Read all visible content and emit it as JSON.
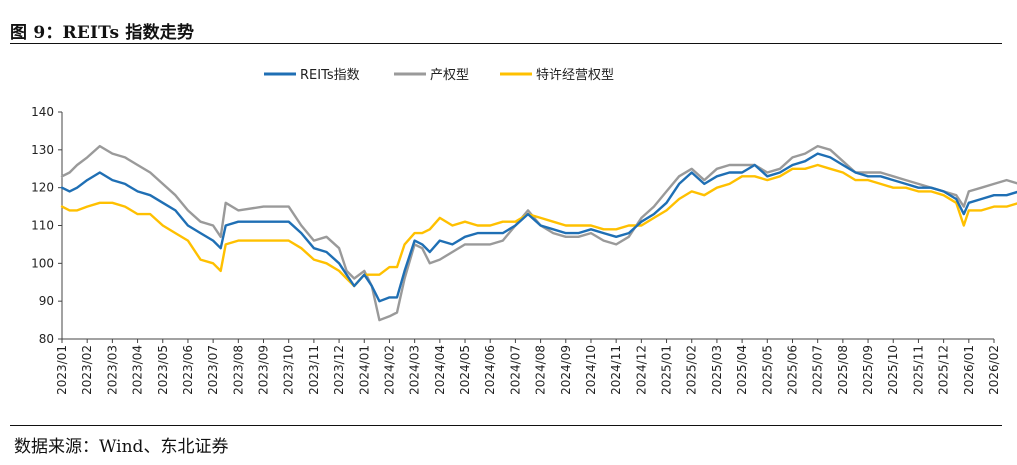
{
  "figure": {
    "title": "图 9：REITs 指数走势",
    "source": "数据来源：Wind、东北证券"
  },
  "chart_data": {
    "type": "line",
    "title": "",
    "xlabel": "",
    "ylabel": "",
    "ylim": [
      80,
      140
    ],
    "yticks": [
      80,
      90,
      100,
      110,
      120,
      130,
      140
    ],
    "grid": false,
    "legend_position": "top-center",
    "x_start": "2023/01",
    "x_end": "2026/02",
    "month_labels": [
      "2023/01",
      "2023/02",
      "2023/03",
      "2023/04",
      "2023/05",
      "2023/06",
      "2023/07",
      "2023/08",
      "2023/09",
      "2023/10",
      "2023/11",
      "2023/12",
      "2024/01",
      "2024/02",
      "2024/03",
      "2024/04",
      "2024/05",
      "2024/06",
      "2024/07",
      "2024/08",
      "2024/09",
      "2024/10",
      "2024/11",
      "2024/12",
      "2025/01",
      "2025/02",
      "2025/03",
      "2025/04",
      "2025/05",
      "2025/06",
      "2025/07",
      "2025/08",
      "2025/09",
      "2025/10",
      "2025/11",
      "2025/12",
      "2026/01",
      "2026/02"
    ],
    "series": [
      {
        "name": "REITs指数",
        "color": "#1f6fb4",
        "points": [
          [
            0,
            120
          ],
          [
            0.3,
            119
          ],
          [
            0.6,
            120
          ],
          [
            1,
            122
          ],
          [
            1.5,
            124
          ],
          [
            2,
            122
          ],
          [
            2.5,
            121
          ],
          [
            3,
            119
          ],
          [
            3.5,
            118
          ],
          [
            4,
            116
          ],
          [
            4.5,
            114
          ],
          [
            5,
            110
          ],
          [
            5.5,
            108
          ],
          [
            6,
            106
          ],
          [
            6.3,
            104
          ],
          [
            6.5,
            110
          ],
          [
            7,
            111
          ],
          [
            8,
            111
          ],
          [
            9,
            111
          ],
          [
            9.5,
            108
          ],
          [
            10,
            104
          ],
          [
            10.5,
            103
          ],
          [
            11,
            100
          ],
          [
            11.3,
            97
          ],
          [
            11.6,
            94
          ],
          [
            12,
            97
          ],
          [
            12.3,
            94
          ],
          [
            12.6,
            90
          ],
          [
            13,
            91
          ],
          [
            13.3,
            91
          ],
          [
            13.6,
            98
          ],
          [
            14,
            106
          ],
          [
            14.3,
            105
          ],
          [
            14.6,
            103
          ],
          [
            15,
            106
          ],
          [
            15.5,
            105
          ],
          [
            16,
            107
          ],
          [
            16.5,
            108
          ],
          [
            17,
            108
          ],
          [
            17.5,
            108
          ],
          [
            18,
            110
          ],
          [
            18.5,
            113
          ],
          [
            19,
            110
          ],
          [
            19.5,
            109
          ],
          [
            20,
            108
          ],
          [
            20.5,
            108
          ],
          [
            21,
            109
          ],
          [
            21.5,
            108
          ],
          [
            22,
            107
          ],
          [
            22.5,
            108
          ],
          [
            23,
            111
          ],
          [
            23.5,
            113
          ],
          [
            24,
            116
          ],
          [
            24.5,
            121
          ],
          [
            25,
            124
          ],
          [
            25.5,
            121
          ],
          [
            26,
            123
          ],
          [
            26.5,
            124
          ],
          [
            27,
            124
          ],
          [
            27.5,
            126
          ],
          [
            28,
            123
          ],
          [
            28.5,
            124
          ],
          [
            29,
            126
          ],
          [
            29.5,
            127
          ],
          [
            30,
            129
          ],
          [
            30.5,
            128
          ],
          [
            31,
            126
          ],
          [
            31.5,
            124
          ],
          [
            32,
            123
          ],
          [
            32.5,
            123
          ],
          [
            33,
            122
          ],
          [
            33.5,
            121
          ],
          [
            34,
            120
          ],
          [
            34.5,
            120
          ],
          [
            35,
            119
          ],
          [
            35.5,
            117
          ],
          [
            35.8,
            113
          ],
          [
            36,
            116
          ],
          [
            36.5,
            117
          ],
          [
            37,
            118
          ],
          [
            37.5,
            118
          ],
          [
            38,
            119
          ]
        ]
      },
      {
        "name": "产权型",
        "color": "#9a9a9a",
        "points": [
          [
            0,
            123
          ],
          [
            0.3,
            124
          ],
          [
            0.6,
            126
          ],
          [
            1,
            128
          ],
          [
            1.5,
            131
          ],
          [
            2,
            129
          ],
          [
            2.5,
            128
          ],
          [
            3,
            126
          ],
          [
            3.5,
            124
          ],
          [
            4,
            121
          ],
          [
            4.5,
            118
          ],
          [
            5,
            114
          ],
          [
            5.5,
            111
          ],
          [
            6,
            110
          ],
          [
            6.3,
            107
          ],
          [
            6.5,
            116
          ],
          [
            7,
            114
          ],
          [
            8,
            115
          ],
          [
            9,
            115
          ],
          [
            9.5,
            110
          ],
          [
            10,
            106
          ],
          [
            10.5,
            107
          ],
          [
            11,
            104
          ],
          [
            11.3,
            98
          ],
          [
            11.6,
            96
          ],
          [
            12,
            98
          ],
          [
            12.3,
            94
          ],
          [
            12.6,
            85
          ],
          [
            13,
            86
          ],
          [
            13.3,
            87
          ],
          [
            13.6,
            96
          ],
          [
            14,
            105
          ],
          [
            14.3,
            104
          ],
          [
            14.6,
            100
          ],
          [
            15,
            101
          ],
          [
            15.5,
            103
          ],
          [
            16,
            105
          ],
          [
            16.5,
            105
          ],
          [
            17,
            105
          ],
          [
            17.5,
            106
          ],
          [
            18,
            110
          ],
          [
            18.5,
            114
          ],
          [
            19,
            110
          ],
          [
            19.5,
            108
          ],
          [
            20,
            107
          ],
          [
            20.5,
            107
          ],
          [
            21,
            108
          ],
          [
            21.5,
            106
          ],
          [
            22,
            105
          ],
          [
            22.5,
            107
          ],
          [
            23,
            112
          ],
          [
            23.5,
            115
          ],
          [
            24,
            119
          ],
          [
            24.5,
            123
          ],
          [
            25,
            125
          ],
          [
            25.5,
            122
          ],
          [
            26,
            125
          ],
          [
            26.5,
            126
          ],
          [
            27,
            126
          ],
          [
            27.5,
            126
          ],
          [
            28,
            124
          ],
          [
            28.5,
            125
          ],
          [
            29,
            128
          ],
          [
            29.5,
            129
          ],
          [
            30,
            131
          ],
          [
            30.5,
            130
          ],
          [
            31,
            127
          ],
          [
            31.5,
            124
          ],
          [
            32,
            124
          ],
          [
            32.5,
            124
          ],
          [
            33,
            123
          ],
          [
            33.5,
            122
          ],
          [
            34,
            121
          ],
          [
            34.5,
            120
          ],
          [
            35,
            119
          ],
          [
            35.5,
            118
          ],
          [
            35.8,
            115
          ],
          [
            36,
            119
          ],
          [
            36.5,
            120
          ],
          [
            37,
            121
          ],
          [
            37.5,
            122
          ],
          [
            38,
            121
          ]
        ]
      },
      {
        "name": "特许经营权型",
        "color": "#ffc000",
        "points": [
          [
            0,
            115
          ],
          [
            0.3,
            114
          ],
          [
            0.6,
            114
          ],
          [
            1,
            115
          ],
          [
            1.5,
            116
          ],
          [
            2,
            116
          ],
          [
            2.5,
            115
          ],
          [
            3,
            113
          ],
          [
            3.5,
            113
          ],
          [
            4,
            110
          ],
          [
            4.5,
            108
          ],
          [
            5,
            106
          ],
          [
            5.5,
            101
          ],
          [
            6,
            100
          ],
          [
            6.3,
            98
          ],
          [
            6.5,
            105
          ],
          [
            7,
            106
          ],
          [
            8,
            106
          ],
          [
            9,
            106
          ],
          [
            9.5,
            104
          ],
          [
            10,
            101
          ],
          [
            10.5,
            100
          ],
          [
            11,
            98
          ],
          [
            11.3,
            96
          ],
          [
            11.6,
            94
          ],
          [
            12,
            97
          ],
          [
            12.3,
            97
          ],
          [
            12.6,
            97
          ],
          [
            13,
            99
          ],
          [
            13.3,
            99
          ],
          [
            13.6,
            105
          ],
          [
            14,
            108
          ],
          [
            14.3,
            108
          ],
          [
            14.6,
            109
          ],
          [
            15,
            112
          ],
          [
            15.5,
            110
          ],
          [
            16,
            111
          ],
          [
            16.5,
            110
          ],
          [
            17,
            110
          ],
          [
            17.5,
            111
          ],
          [
            18,
            111
          ],
          [
            18.5,
            113
          ],
          [
            19,
            112
          ],
          [
            19.5,
            111
          ],
          [
            20,
            110
          ],
          [
            20.5,
            110
          ],
          [
            21,
            110
          ],
          [
            21.5,
            109
          ],
          [
            22,
            109
          ],
          [
            22.5,
            110
          ],
          [
            23,
            110
          ],
          [
            23.5,
            112
          ],
          [
            24,
            114
          ],
          [
            24.5,
            117
          ],
          [
            25,
            119
          ],
          [
            25.5,
            118
          ],
          [
            26,
            120
          ],
          [
            26.5,
            121
          ],
          [
            27,
            123
          ],
          [
            27.5,
            123
          ],
          [
            28,
            122
          ],
          [
            28.5,
            123
          ],
          [
            29,
            125
          ],
          [
            29.5,
            125
          ],
          [
            30,
            126
          ],
          [
            30.5,
            125
          ],
          [
            31,
            124
          ],
          [
            31.5,
            122
          ],
          [
            32,
            122
          ],
          [
            32.5,
            121
          ],
          [
            33,
            120
          ],
          [
            33.5,
            120
          ],
          [
            34,
            119
          ],
          [
            34.5,
            119
          ],
          [
            35,
            118
          ],
          [
            35.5,
            116
          ],
          [
            35.8,
            110
          ],
          [
            36,
            114
          ],
          [
            36.5,
            114
          ],
          [
            37,
            115
          ],
          [
            37.5,
            115
          ],
          [
            38,
            116
          ]
        ]
      }
    ]
  }
}
